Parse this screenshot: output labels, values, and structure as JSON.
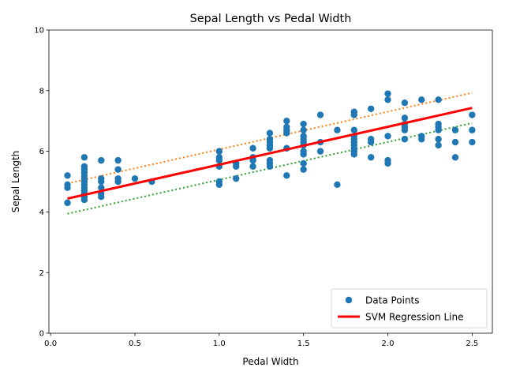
{
  "chart_data": {
    "type": "scatter",
    "title": "Sepal Length vs Pedal Width",
    "xlabel": "Pedal Width",
    "ylabel": "Sepal Length",
    "xlim": [
      -0.01,
      2.62
    ],
    "ylim": [
      0,
      10
    ],
    "xticks": [
      0.0,
      0.5,
      1.0,
      1.5,
      2.0,
      2.5
    ],
    "xtick_labels": [
      "0.0",
      "0.5",
      "1.0",
      "1.5",
      "2.0",
      "2.5"
    ],
    "yticks": [
      0,
      2,
      4,
      6,
      8,
      10
    ],
    "ytick_labels": [
      "0",
      "2",
      "4",
      "6",
      "8",
      "10"
    ],
    "grid": false,
    "legend_position": "bottom-right",
    "colors": {
      "points": "#1f77b4",
      "svm_line": "#ff0000",
      "upper_line": "#ff7f0e",
      "lower_line": "#2ca02c"
    },
    "series": [
      {
        "name": "Data Points",
        "kind": "scatter",
        "points": [
          [
            0.1,
            5.2
          ],
          [
            0.1,
            4.9
          ],
          [
            0.1,
            4.8
          ],
          [
            0.1,
            4.3
          ],
          [
            0.2,
            5.8
          ],
          [
            0.2,
            5.5
          ],
          [
            0.2,
            5.4
          ],
          [
            0.2,
            5.3
          ],
          [
            0.2,
            5.2
          ],
          [
            0.2,
            5.1
          ],
          [
            0.2,
            5.0
          ],
          [
            0.2,
            4.9
          ],
          [
            0.2,
            4.8
          ],
          [
            0.2,
            4.7
          ],
          [
            0.2,
            4.6
          ],
          [
            0.2,
            4.5
          ],
          [
            0.2,
            4.4
          ],
          [
            0.3,
            5.7
          ],
          [
            0.3,
            5.1
          ],
          [
            0.3,
            5.0
          ],
          [
            0.3,
            4.8
          ],
          [
            0.3,
            4.6
          ],
          [
            0.3,
            4.5
          ],
          [
            0.4,
            5.7
          ],
          [
            0.4,
            5.4
          ],
          [
            0.4,
            5.1
          ],
          [
            0.4,
            5.0
          ],
          [
            0.5,
            5.1
          ],
          [
            0.6,
            5.0
          ],
          [
            1.0,
            6.0
          ],
          [
            1.0,
            5.8
          ],
          [
            1.0,
            5.7
          ],
          [
            1.0,
            5.5
          ],
          [
            1.0,
            5.0
          ],
          [
            1.0,
            4.9
          ],
          [
            1.1,
            5.6
          ],
          [
            1.1,
            5.5
          ],
          [
            1.1,
            5.1
          ],
          [
            1.2,
            6.1
          ],
          [
            1.2,
            5.8
          ],
          [
            1.2,
            5.7
          ],
          [
            1.2,
            5.5
          ],
          [
            1.3,
            6.6
          ],
          [
            1.3,
            6.4
          ],
          [
            1.3,
            6.3
          ],
          [
            1.3,
            6.2
          ],
          [
            1.3,
            6.1
          ],
          [
            1.3,
            5.7
          ],
          [
            1.3,
            5.6
          ],
          [
            1.3,
            5.5
          ],
          [
            1.4,
            7.0
          ],
          [
            1.4,
            6.8
          ],
          [
            1.4,
            6.7
          ],
          [
            1.4,
            6.6
          ],
          [
            1.4,
            6.1
          ],
          [
            1.4,
            5.2
          ],
          [
            1.5,
            6.9
          ],
          [
            1.5,
            6.7
          ],
          [
            1.5,
            6.5
          ],
          [
            1.5,
            6.4
          ],
          [
            1.5,
            6.3
          ],
          [
            1.5,
            6.2
          ],
          [
            1.5,
            6.0
          ],
          [
            1.5,
            5.9
          ],
          [
            1.5,
            5.6
          ],
          [
            1.5,
            5.4
          ],
          [
            1.6,
            7.2
          ],
          [
            1.6,
            6.3
          ],
          [
            1.6,
            6.0
          ],
          [
            1.7,
            6.7
          ],
          [
            1.7,
            4.9
          ],
          [
            1.8,
            7.3
          ],
          [
            1.8,
            7.2
          ],
          [
            1.8,
            6.7
          ],
          [
            1.8,
            6.5
          ],
          [
            1.8,
            6.4
          ],
          [
            1.8,
            6.3
          ],
          [
            1.8,
            6.2
          ],
          [
            1.8,
            6.1
          ],
          [
            1.8,
            6.0
          ],
          [
            1.8,
            5.9
          ],
          [
            1.9,
            7.4
          ],
          [
            1.9,
            6.4
          ],
          [
            1.9,
            6.3
          ],
          [
            1.9,
            5.8
          ],
          [
            2.0,
            7.9
          ],
          [
            2.0,
            7.7
          ],
          [
            2.0,
            6.5
          ],
          [
            2.0,
            5.7
          ],
          [
            2.0,
            5.6
          ],
          [
            2.1,
            7.6
          ],
          [
            2.1,
            7.1
          ],
          [
            2.1,
            6.9
          ],
          [
            2.1,
            6.8
          ],
          [
            2.1,
            6.7
          ],
          [
            2.1,
            6.4
          ],
          [
            2.2,
            7.7
          ],
          [
            2.2,
            6.5
          ],
          [
            2.2,
            6.4
          ],
          [
            2.3,
            7.7
          ],
          [
            2.3,
            6.9
          ],
          [
            2.3,
            6.8
          ],
          [
            2.3,
            6.7
          ],
          [
            2.3,
            6.4
          ],
          [
            2.3,
            6.2
          ],
          [
            2.4,
            6.7
          ],
          [
            2.4,
            6.3
          ],
          [
            2.4,
            5.8
          ],
          [
            2.5,
            7.2
          ],
          [
            2.5,
            6.7
          ],
          [
            2.5,
            6.3
          ]
        ]
      },
      {
        "name": "SVM Regression Line",
        "kind": "line",
        "points": [
          [
            0.1,
            4.44
          ],
          [
            2.5,
            7.43
          ]
        ]
      },
      {
        "kind": "dotted",
        "points": [
          [
            0.1,
            4.94
          ],
          [
            2.5,
            7.93
          ]
        ]
      },
      {
        "kind": "dotted",
        "points": [
          [
            0.1,
            3.94
          ],
          [
            2.5,
            6.93
          ]
        ]
      }
    ]
  }
}
